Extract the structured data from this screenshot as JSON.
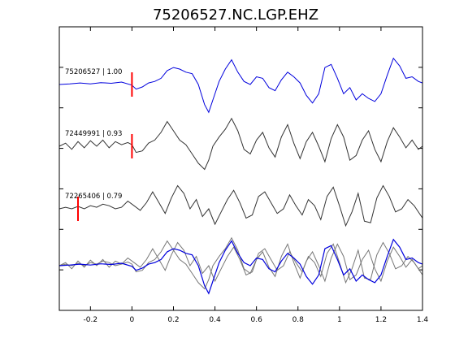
{
  "chart_data": {
    "type": "line",
    "title": "75206527.NC.LGP.EHZ",
    "xlabel": "",
    "ylabel": "",
    "xlim": [
      -0.35,
      1.4
    ],
    "xticks": [
      -0.2,
      0,
      0.2,
      0.4,
      0.6,
      0.8,
      1,
      1.2,
      1.4
    ],
    "xtick_labels": [
      "-0.2",
      "0",
      "0.2",
      "0.4",
      "0.6",
      "0.8",
      "1",
      "1.2",
      "1.4"
    ],
    "grid": false,
    "legend": "none",
    "colors": {
      "reference": "#0000dd",
      "match": "#333333",
      "overlay_match": "#777777",
      "pick": "#ff0000"
    },
    "traces": [
      {
        "label": "75206527 | 1.00",
        "pick_time": 0.0,
        "color": "reference",
        "x": [
          -0.35,
          -0.3,
          -0.25,
          -0.2,
          -0.15,
          -0.1,
          -0.05,
          0.0,
          0.02,
          0.05,
          0.08,
          0.11,
          0.14,
          0.17,
          0.2,
          0.23,
          0.26,
          0.29,
          0.32,
          0.35,
          0.37,
          0.39,
          0.42,
          0.45,
          0.48,
          0.51,
          0.54,
          0.57,
          0.6,
          0.63,
          0.66,
          0.69,
          0.72,
          0.75,
          0.78,
          0.81,
          0.84,
          0.87,
          0.9,
          0.93,
          0.96,
          0.99,
          1.02,
          1.05,
          1.08,
          1.11,
          1.14,
          1.17,
          1.2,
          1.23,
          1.26,
          1.29,
          1.32,
          1.35,
          1.38,
          1.4
        ],
        "y": [
          0,
          0.02,
          0.05,
          0.02,
          0.06,
          0.04,
          0.08,
          -0.02,
          -0.15,
          -0.08,
          0.05,
          0.1,
          0.2,
          0.45,
          0.55,
          0.5,
          0.4,
          0.35,
          0.0,
          -0.65,
          -0.9,
          -0.5,
          0.1,
          0.5,
          0.8,
          0.4,
          0.1,
          0.0,
          0.25,
          0.2,
          -0.1,
          -0.2,
          0.15,
          0.4,
          0.25,
          0.05,
          -0.35,
          -0.6,
          -0.3,
          0.55,
          0.65,
          0.2,
          -0.3,
          -0.1,
          -0.5,
          -0.3,
          -0.45,
          -0.55,
          -0.3,
          0.3,
          0.85,
          0.6,
          0.2,
          0.25,
          0.1,
          0.05
        ]
      },
      {
        "label": "72449991 | 0.93",
        "pick_time": 0.0,
        "color": "match",
        "x": [
          -0.35,
          -0.32,
          -0.29,
          -0.26,
          -0.23,
          -0.2,
          -0.17,
          -0.14,
          -0.11,
          -0.08,
          -0.05,
          -0.02,
          0.0,
          0.02,
          0.05,
          0.08,
          0.11,
          0.14,
          0.17,
          0.2,
          0.23,
          0.26,
          0.29,
          0.32,
          0.35,
          0.37,
          0.39,
          0.42,
          0.45,
          0.48,
          0.51,
          0.54,
          0.57,
          0.6,
          0.63,
          0.66,
          0.69,
          0.72,
          0.75,
          0.78,
          0.81,
          0.84,
          0.87,
          0.9,
          0.93,
          0.96,
          0.99,
          1.02,
          1.05,
          1.08,
          1.11,
          1.14,
          1.17,
          1.2,
          1.23,
          1.26,
          1.29,
          1.32,
          1.35,
          1.38,
          1.4
        ],
        "y": [
          0,
          0.1,
          -0.1,
          0.15,
          -0.05,
          0.18,
          0,
          0.2,
          -0.05,
          0.15,
          0.05,
          0.12,
          0.05,
          -0.2,
          -0.15,
          0.1,
          0.2,
          0.45,
          0.8,
          0.5,
          0.2,
          0.05,
          -0.25,
          -0.55,
          -0.75,
          -0.45,
          0.0,
          0.3,
          0.55,
          0.9,
          0.5,
          -0.1,
          -0.25,
          0.2,
          0.45,
          -0.05,
          -0.35,
          0.3,
          0.7,
          0.1,
          -0.4,
          0.15,
          0.45,
          0.0,
          -0.5,
          0.25,
          0.7,
          0.3,
          -0.45,
          -0.3,
          0.2,
          0.5,
          -0.1,
          -0.5,
          0.15,
          0.6,
          0.3,
          -0.05,
          0.2,
          -0.1,
          0.0
        ]
      },
      {
        "label": "72265406 | 0.79",
        "pick_time": -0.26,
        "color": "match",
        "x": [
          -0.35,
          -0.32,
          -0.29,
          -0.26,
          -0.23,
          -0.2,
          -0.17,
          -0.14,
          -0.11,
          -0.08,
          -0.05,
          -0.02,
          0.01,
          0.04,
          0.07,
          0.1,
          0.13,
          0.16,
          0.19,
          0.22,
          0.25,
          0.28,
          0.31,
          0.34,
          0.37,
          0.4,
          0.43,
          0.46,
          0.49,
          0.52,
          0.55,
          0.58,
          0.61,
          0.64,
          0.67,
          0.7,
          0.73,
          0.76,
          0.79,
          0.82,
          0.85,
          0.88,
          0.91,
          0.94,
          0.97,
          1.0,
          1.03,
          1.06,
          1.09,
          1.12,
          1.15,
          1.18,
          1.21,
          1.24,
          1.27,
          1.3,
          1.33,
          1.36,
          1.4
        ],
        "y": [
          0,
          0.05,
          0.0,
          0.08,
          0.0,
          0.1,
          0.05,
          0.15,
          0.1,
          0.0,
          0.05,
          0.25,
          0.1,
          -0.05,
          0.2,
          0.55,
          0.2,
          -0.15,
          0.35,
          0.75,
          0.5,
          0.0,
          0.3,
          -0.25,
          0.0,
          -0.5,
          -0.1,
          0.3,
          0.6,
          0.2,
          -0.3,
          -0.2,
          0.4,
          0.55,
          0.2,
          -0.15,
          0.0,
          0.45,
          0.1,
          -0.2,
          0.3,
          0.1,
          -0.35,
          0.4,
          0.7,
          0.1,
          -0.55,
          -0.1,
          0.5,
          -0.4,
          -0.45,
          0.35,
          0.75,
          0.4,
          -0.1,
          0.0,
          0.3,
          0.1,
          -0.3
        ]
      }
    ]
  }
}
